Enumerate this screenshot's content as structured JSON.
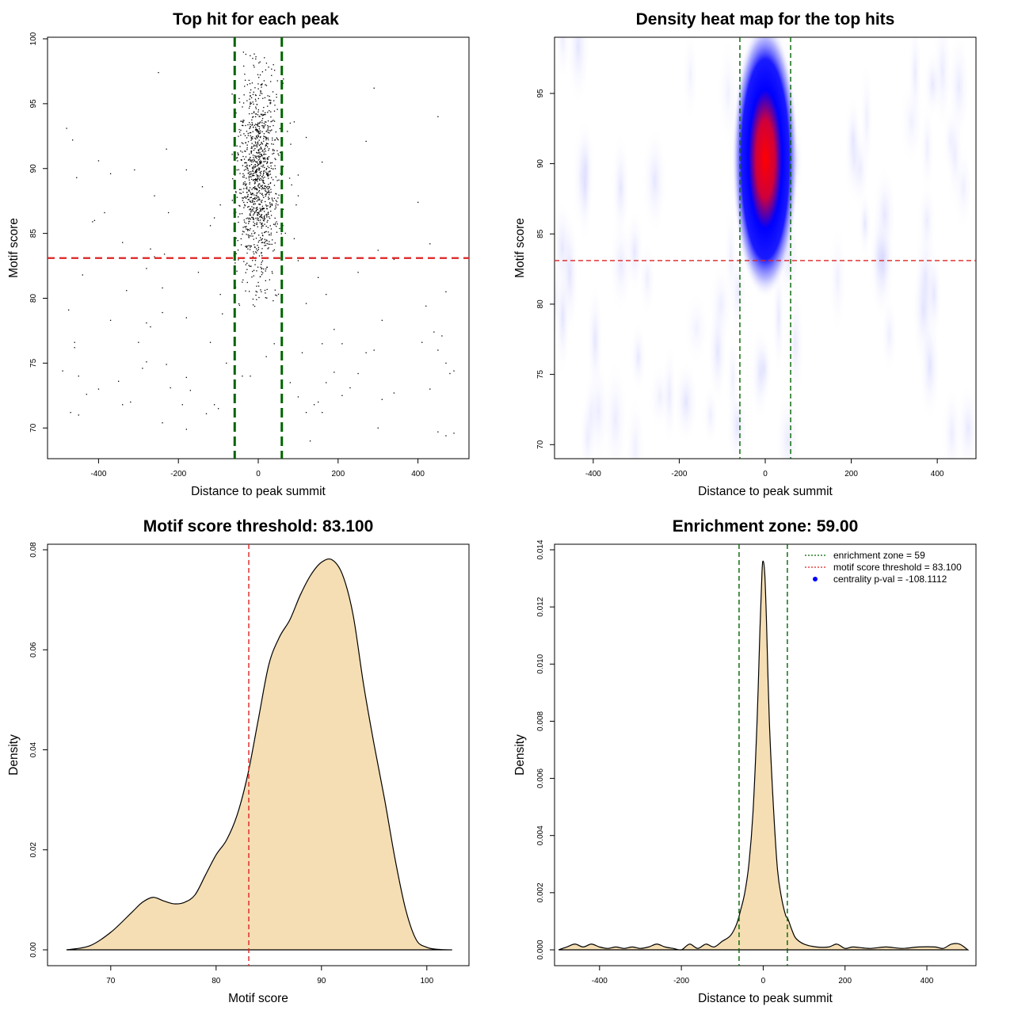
{
  "colors": {
    "threshold": "#dd2222",
    "zone": "#006400",
    "fill": "#f5deb3",
    "point": "#000000",
    "heat_low": "#ffffff",
    "heat_mid": "#0000ff",
    "heat_high": "#ff0000",
    "legend_dot": "#0000ff"
  },
  "chart_data": [
    {
      "type": "scatter",
      "title": "Top hit for each peak",
      "xlabel": "Distance to peak summit",
      "ylabel": "Motif score",
      "xlim": [
        -500,
        500
      ],
      "ylim": [
        68,
        100
      ],
      "xticks": [
        "-400",
        "-200",
        "0",
        "200",
        "400"
      ],
      "yticks": [
        "70",
        "75",
        "80",
        "85",
        "90",
        "95",
        "100"
      ],
      "threshold_y": 83.1,
      "zone": [
        -59,
        59
      ],
      "central_points": {
        "count": 1100,
        "x_mean": 0,
        "x_sd": 25,
        "y_mean": 89,
        "y_sd": 4,
        "y_range": [
          79,
          99
        ]
      },
      "outlier_points": [
        [
          -480,
          93.1
        ],
        [
          -465,
          92.2
        ],
        [
          -455,
          89.3
        ],
        [
          -400,
          90.6
        ],
        [
          -410,
          86
        ],
        [
          -415,
          85.9
        ],
        [
          -385,
          86.6
        ],
        [
          -370,
          89.6
        ],
        [
          -310,
          89.9
        ],
        [
          -260,
          87.9
        ],
        [
          -230,
          91.5
        ],
        [
          -250,
          97.4
        ],
        [
          -180,
          89.9
        ],
        [
          -225,
          86.6
        ],
        [
          -140,
          88.6
        ],
        [
          -120,
          85.6
        ],
        [
          -110,
          86.2
        ],
        [
          -95,
          87.2
        ],
        [
          -340,
          84.3
        ],
        [
          -270,
          83.8
        ],
        [
          -260,
          83.2
        ],
        [
          -235,
          83.4
        ],
        [
          -280,
          82.3
        ],
        [
          -150,
          82
        ],
        [
          -440,
          81.8
        ],
        [
          -330,
          80.6
        ],
        [
          -240,
          80.8
        ],
        [
          -95,
          80.3
        ],
        [
          -475,
          79.1
        ],
        [
          -370,
          78.3
        ],
        [
          -280,
          78.1
        ],
        [
          -240,
          78.9
        ],
        [
          -180,
          78.5
        ],
        [
          -90,
          78.8
        ],
        [
          -460,
          76.6
        ],
        [
          -460,
          76.2
        ],
        [
          -300,
          76.6
        ],
        [
          -270,
          77.8
        ],
        [
          -120,
          76.6
        ],
        [
          -230,
          74.9
        ],
        [
          -180,
          73.9
        ],
        [
          -490,
          74.4
        ],
        [
          -450,
          74
        ],
        [
          -430,
          72.6
        ],
        [
          -400,
          73
        ],
        [
          -350,
          73.6
        ],
        [
          -320,
          72
        ],
        [
          -290,
          74.6
        ],
        [
          -280,
          75.1
        ],
        [
          -220,
          73.1
        ],
        [
          -190,
          71.8
        ],
        [
          -170,
          72.9
        ],
        [
          -130,
          71.1
        ],
        [
          -110,
          71.8
        ],
        [
          -470,
          71.2
        ],
        [
          -450,
          71
        ],
        [
          -340,
          71.8
        ],
        [
          -240,
          70.4
        ],
        [
          -180,
          69.9
        ],
        [
          -100,
          71.5
        ],
        [
          -80,
          75
        ],
        [
          -40,
          74
        ],
        [
          -20,
          74
        ],
        [
          20,
          75.5
        ],
        [
          40,
          76.5
        ],
        [
          80,
          73.5
        ],
        [
          100,
          72.4
        ],
        [
          120,
          71.2
        ],
        [
          130,
          69
        ],
        [
          140,
          71.8
        ],
        [
          150,
          72
        ],
        [
          160,
          71.2
        ],
        [
          170,
          73.5
        ],
        [
          190,
          74.3
        ],
        [
          210,
          72.5
        ],
        [
          230,
          73.1
        ],
        [
          250,
          74.2
        ],
        [
          270,
          75.8
        ],
        [
          300,
          70
        ],
        [
          310,
          72.2
        ],
        [
          340,
          72.7
        ],
        [
          110,
          75.8
        ],
        [
          160,
          76.5
        ],
        [
          190,
          77.6
        ],
        [
          210,
          76.5
        ],
        [
          290,
          76
        ],
        [
          310,
          78.3
        ],
        [
          410,
          76.6
        ],
        [
          430,
          73
        ],
        [
          440,
          77.4
        ],
        [
          450,
          76
        ],
        [
          460,
          77.1
        ],
        [
          470,
          75
        ],
        [
          480,
          74.2
        ],
        [
          490,
          74.4
        ],
        [
          450,
          69.7
        ],
        [
          470,
          69.4
        ],
        [
          490,
          69.6
        ],
        [
          470,
          80.5
        ],
        [
          420,
          79.4
        ],
        [
          340,
          83
        ],
        [
          300,
          83.7
        ],
        [
          250,
          82
        ],
        [
          170,
          80.3
        ],
        [
          150,
          81.6
        ],
        [
          120,
          79.6
        ],
        [
          90,
          84.6
        ],
        [
          95,
          87.2
        ],
        [
          100,
          87.9
        ],
        [
          100,
          89.5
        ],
        [
          120,
          92.4
        ],
        [
          160,
          90.5
        ],
        [
          270,
          92.1
        ],
        [
          290,
          96.2
        ],
        [
          400,
          87.4
        ],
        [
          430,
          84.2
        ],
        [
          450,
          94
        ],
        [
          90,
          93.6
        ],
        [
          80,
          93.5
        ],
        [
          100,
          82.9
        ]
      ]
    },
    {
      "type": "heatmap",
      "title": "Density heat map for the top hits",
      "xlabel": "Distance to peak summit",
      "ylabel": "Motif score",
      "xlim": [
        -490,
        490
      ],
      "ylim": [
        69,
        99
      ],
      "xticks": [
        "-400",
        "-200",
        "0",
        "200",
        "400"
      ],
      "yticks": [
        "70",
        "75",
        "80",
        "85",
        "90",
        "95"
      ],
      "threshold_y": 83.1,
      "zone": [
        -59,
        59
      ],
      "peak": {
        "x": 0,
        "y": 91
      }
    },
    {
      "type": "area",
      "title": "Motif score threshold: 83.100",
      "xlabel": "Motif score",
      "ylabel": "Density",
      "xlim": [
        64,
        104
      ],
      "ylim": [
        0,
        0.08
      ],
      "xticks": [
        "70",
        "80",
        "90",
        "100"
      ],
      "yticks": [
        "0.00",
        "0.02",
        "0.04",
        "0.06",
        "0.08"
      ],
      "threshold_x": 83.1,
      "x": [
        65.8,
        68,
        70,
        72,
        73,
        74,
        75,
        76,
        77,
        78,
        79,
        80,
        81,
        82,
        83,
        84,
        85,
        86,
        87,
        88,
        89,
        90,
        91,
        92,
        93,
        94,
        95,
        96,
        97,
        98,
        99,
        100,
        101,
        102.4
      ],
      "y": [
        0,
        0.0008,
        0.0035,
        0.0075,
        0.0095,
        0.0105,
        0.0098,
        0.0092,
        0.0095,
        0.011,
        0.015,
        0.019,
        0.022,
        0.027,
        0.035,
        0.046,
        0.057,
        0.0625,
        0.066,
        0.071,
        0.075,
        0.0775,
        0.078,
        0.075,
        0.067,
        0.053,
        0.041,
        0.03,
        0.018,
        0.008,
        0.002,
        0.0005,
        0.0001,
        0
      ]
    },
    {
      "type": "area",
      "title": "Enrichment zone: 59.00",
      "xlabel": "Distance to peak summit",
      "ylabel": "Density",
      "xlim": [
        -510,
        520
      ],
      "ylim": [
        -0.0003,
        0.0142
      ],
      "xticks": [
        "-400",
        "-200",
        "0",
        "200",
        "400"
      ],
      "yticks": [
        "0.000",
        "0.002",
        "0.004",
        "0.006",
        "0.008",
        "0.010",
        "0.012",
        "0.014"
      ],
      "zone": [
        -59,
        59
      ],
      "x": [
        -500,
        -480,
        -460,
        -440,
        -420,
        -400,
        -380,
        -360,
        -340,
        -320,
        -300,
        -280,
        -260,
        -240,
        -220,
        -200,
        -180,
        -160,
        -140,
        -120,
        -100,
        -80,
        -65,
        -55,
        -45,
        -35,
        -25,
        -15,
        -8,
        -3,
        0,
        4,
        8,
        15,
        25,
        35,
        45,
        55,
        60,
        70,
        80,
        100,
        130,
        160,
        180,
        200,
        220,
        260,
        300,
        340,
        380,
        420,
        440,
        460,
        480,
        500
      ],
      "y": [
        0,
        0.0001,
        0.0002,
        0.0001,
        0.0002,
        0.0001,
        5e-05,
        0.0001,
        5e-05,
        0.0001,
        5e-05,
        0.0001,
        0.0002,
        0.0001,
        5e-05,
        0,
        0.0002,
        5e-05,
        0.0002,
        0.0001,
        0.0003,
        0.0005,
        0.0009,
        0.0014,
        0.002,
        0.003,
        0.0048,
        0.008,
        0.0112,
        0.0132,
        0.0136,
        0.0131,
        0.0115,
        0.008,
        0.005,
        0.0028,
        0.0018,
        0.0012,
        0.0011,
        0.0007,
        0.0004,
        0.0002,
        0.0001,
        0.0001,
        0.0002,
        5e-05,
        0.0001,
        5e-05,
        0.0001,
        5e-05,
        0.0001,
        0.0001,
        5e-05,
        0.0002,
        0.0002,
        0
      ],
      "legend": [
        {
          "label": "enrichment zone = 59",
          "style": "dotted-line",
          "color": "#006400"
        },
        {
          "label": "motif score threshold = 83.100",
          "style": "dotted-line",
          "color": "#dd2222"
        },
        {
          "label": "centrality p-val = -108.1112",
          "style": "dot",
          "color": "#0000ff"
        }
      ],
      "legend_position": "top-right"
    }
  ]
}
